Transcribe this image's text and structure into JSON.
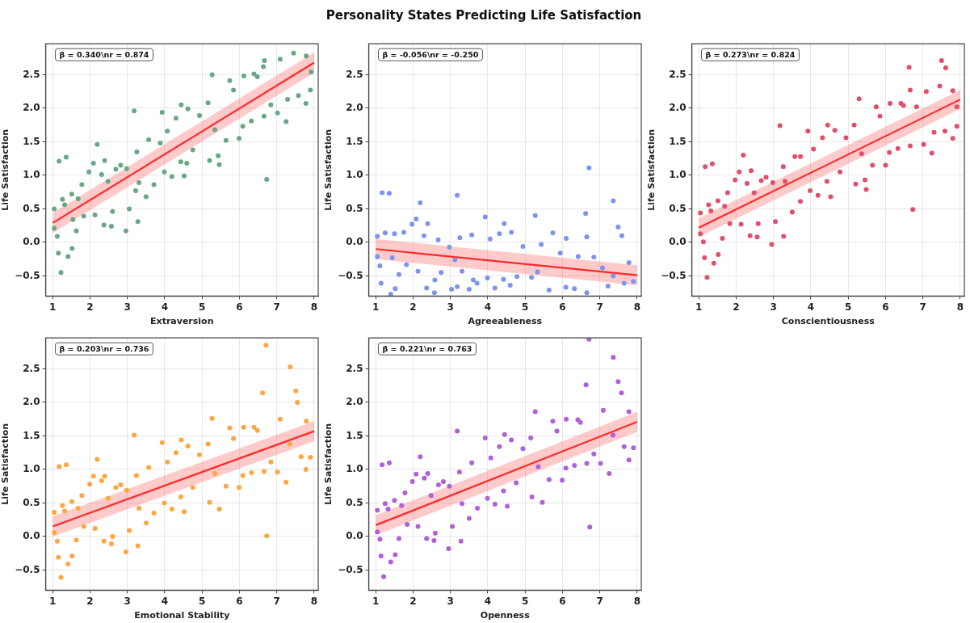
{
  "chart_data": [
    {
      "type": "scatter",
      "xlabel": "Extraversion",
      "ylabel": "Life Satisfaction",
      "xlim": [
        0.81,
        8.11
      ],
      "ylim": [
        -0.8,
        2.96
      ],
      "xticks": [
        1,
        2,
        3,
        4,
        5,
        6,
        7,
        8
      ],
      "yticks": [
        {
          "value": -0.5,
          "label": "−0.5"
        },
        {
          "value": 0,
          "label": "0.0"
        },
        {
          "value": 0.5,
          "label": "0.5"
        },
        {
          "value": 1,
          "label": "1.0"
        },
        {
          "value": 1.5,
          "label": "1.5"
        },
        {
          "value": 2,
          "label": "2.0"
        },
        {
          "value": 2.5,
          "label": "2.5"
        }
      ],
      "grid": true,
      "annotations": [
        "β = 0.340\\nr = 0.874"
      ],
      "series": [
        {
          "marker": "circle",
          "color": "#68a882",
          "x": [
            1.04,
            1.04,
            1.12,
            1.15,
            1.22,
            1.17,
            1.36,
            1.26,
            1.32,
            1.41,
            1.52,
            1.51,
            1.54,
            1.63,
            1.68,
            1.78,
            1.83,
            1.97,
            2.09,
            2.13,
            2.19,
            2.31,
            2.37,
            2.39,
            2.48,
            2.57,
            2.6,
            2.69,
            2.82,
            2.96,
            2.98,
            3.05,
            3.18,
            3.22,
            3.25,
            3.28,
            3.31,
            3.5,
            3.57,
            3.71,
            3.88,
            3.93,
            3.99,
            4.07,
            4.19,
            4.3,
            4.43,
            4.44,
            4.52,
            4.62,
            4.59,
            4.75,
            4.93,
            5.16,
            5.2,
            5.27,
            5.34,
            5.43,
            5.46,
            5.64,
            5.74,
            5.84,
            5.99,
            6.09,
            6.12,
            6.32,
            6.39,
            6.48,
            6.64,
            6.67,
            6.66,
            6.73,
            6.84,
            7.02,
            7.09,
            7.25,
            7.29,
            7.45,
            7.58,
            7.78,
            7.79,
            7.9,
            7.92
          ],
          "values": [
            0.5,
            0.21,
            0.09,
            -0.16,
            -0.45,
            1.21,
            1.27,
            0.64,
            0.56,
            -0.21,
            -0.09,
            0.72,
            0.34,
            0.17,
            0.65,
            0.86,
            0.39,
            1.05,
            1.18,
            0.41,
            1.46,
            1.01,
            0.26,
            1.22,
            0.91,
            0.24,
            0.46,
            1.09,
            1.15,
            0.17,
            1.1,
            0.5,
            1.96,
            0.77,
            1.35,
            0.31,
            0.89,
            0.68,
            1.53,
            0.86,
            1.48,
            1.94,
            1.05,
            1.66,
            0.98,
            1.85,
            1.2,
            2.05,
            0.99,
            1.99,
            1.18,
            1.38,
            1.89,
            2.08,
            1.22,
            2.5,
            1.68,
            1.29,
            1.16,
            1.52,
            2.41,
            2.27,
            1.55,
            1.73,
            2.48,
            1.81,
            2.51,
            2.47,
            2.62,
            2.71,
            1.88,
            0.94,
            2.05,
            1.93,
            2.73,
            1.8,
            2.13,
            2.82,
            2.19,
            2.07,
            2.78,
            2.27,
            2.54
          ]
        },
        {
          "type": "line",
          "color": "#ff2a2a",
          "x": [
            1,
            8
          ],
          "values": [
            0.29,
            2.68
          ],
          "lower": [
            0.14,
            2.53
          ],
          "upper": [
            0.44,
            2.83
          ]
        }
      ]
    },
    {
      "type": "scatter",
      "title": "Personality States Predicting Life Satisfaction",
      "xlabel": "Agreeableness",
      "ylabel": "Life Satisfaction",
      "xlim": [
        0.81,
        8.11
      ],
      "ylim": [
        -0.8,
        2.96
      ],
      "xticks": [
        1,
        2,
        3,
        4,
        5,
        6,
        7,
        8
      ],
      "yticks": [
        {
          "value": -0.5,
          "label": "−0.5"
        },
        {
          "value": 0,
          "label": "0.0"
        },
        {
          "value": 0.5,
          "label": "0.5"
        },
        {
          "value": 1,
          "label": "1.0"
        },
        {
          "value": 1.5,
          "label": "1.5"
        },
        {
          "value": 2,
          "label": "2.0"
        },
        {
          "value": 2.5,
          "label": "2.5"
        }
      ],
      "grid": true,
      "annotations": [
        "β = -0.056\\nr = -0.250"
      ],
      "series": [
        {
          "marker": "circle",
          "color": "#7b95ec",
          "x": [
            1.04,
            1.04,
            1.11,
            1.14,
            1.17,
            1.25,
            1.36,
            1.4,
            1.44,
            1.5,
            1.52,
            1.62,
            1.75,
            1.82,
            1.97,
            2.08,
            2.13,
            2.19,
            2.29,
            2.36,
            2.39,
            2.57,
            2.58,
            2.67,
            2.75,
            2.97,
            3.03,
            3.12,
            3.18,
            3.18,
            3.25,
            3.31,
            3.5,
            3.57,
            3.61,
            3.71,
            3.93,
            3.99,
            4.06,
            4.19,
            4.31,
            4.44,
            4.42,
            4.6,
            4.63,
            4.78,
            4.94,
            5.17,
            5.27,
            5.33,
            5.43,
            5.64,
            5.74,
            5.94,
            6.09,
            6.1,
            6.32,
            6.42,
            6.62,
            6.65,
            6.71,
            6.65,
            6.84,
            7.07,
            7.22,
            7.36,
            7.36,
            7.49,
            7.59,
            7.65,
            7.78,
            7.9
          ],
          "values": [
            0.09,
            -0.21,
            -0.35,
            -0.61,
            0.74,
            0.14,
            0.73,
            -0.77,
            -0.23,
            0.13,
            -0.69,
            -0.48,
            0.15,
            -0.33,
            0.27,
            0.35,
            -0.43,
            0.59,
            0.1,
            -0.68,
            0.28,
            -0.75,
            -0.56,
            0.04,
            -0.45,
            -0.07,
            -0.7,
            -0.26,
            0.7,
            -0.66,
            0.07,
            -0.43,
            -0.7,
            0.11,
            -0.56,
            -0.61,
            0.38,
            -0.53,
            0.05,
            -0.68,
            0.13,
            0.28,
            -0.55,
            -0.64,
            0.15,
            -0.51,
            -0.06,
            -0.52,
            0.4,
            -0.44,
            -0.03,
            -0.71,
            0.14,
            -0.16,
            -0.67,
            0.06,
            -0.69,
            -0.21,
            0.43,
            0.08,
            1.11,
            -0.75,
            -0.22,
            -0.38,
            -0.65,
            0.62,
            -0.5,
            0.23,
            0.1,
            -0.61,
            -0.3,
            -0.58
          ]
        },
        {
          "type": "line",
          "color": "#ff2a2a",
          "x": [
            1,
            8
          ],
          "values": [
            -0.1,
            -0.49
          ],
          "lower": [
            -0.25,
            -0.64
          ],
          "upper": [
            0.05,
            -0.34
          ]
        }
      ]
    },
    {
      "type": "scatter",
      "xlabel": "Conscientiousness",
      "ylabel": "Life Satisfaction",
      "xlim": [
        0.81,
        8.11
      ],
      "ylim": [
        -0.8,
        2.96
      ],
      "xticks": [
        1,
        2,
        3,
        4,
        5,
        6,
        7,
        8
      ],
      "yticks": [
        {
          "value": -0.5,
          "label": "−0.5"
        },
        {
          "value": 0,
          "label": "0.0"
        },
        {
          "value": 0.5,
          "label": "0.5"
        },
        {
          "value": 1,
          "label": "1.0"
        },
        {
          "value": 1.5,
          "label": "1.5"
        },
        {
          "value": 2,
          "label": "2.0"
        },
        {
          "value": 2.5,
          "label": "2.5"
        }
      ],
      "grid": true,
      "annotations": [
        "β = 0.273\\nr = 0.824"
      ],
      "series": [
        {
          "marker": "circle",
          "color": "#e0506a",
          "x": [
            1.04,
            1.04,
            1.12,
            1.15,
            1.22,
            1.17,
            1.36,
            1.26,
            1.32,
            1.4,
            1.52,
            1.51,
            1.63,
            1.69,
            1.77,
            1.83,
            1.97,
            2.08,
            2.13,
            2.19,
            2.29,
            2.37,
            2.4,
            2.48,
            2.56,
            2.59,
            2.67,
            2.8,
            2.95,
            2.98,
            3.05,
            3.17,
            3.26,
            3.27,
            3.31,
            3.5,
            3.57,
            3.72,
            3.72,
            3.92,
            3.98,
            4.07,
            4.19,
            4.31,
            4.45,
            4.43,
            4.53,
            4.64,
            4.78,
            4.94,
            5.16,
            5.2,
            5.29,
            5.36,
            5.45,
            5.48,
            5.65,
            5.75,
            5.85,
            6,
            6.1,
            6.12,
            6.33,
            6.41,
            6.48,
            6.63,
            6.66,
            6.66,
            6.73,
            6.83,
            7.02,
            7.09,
            7.24,
            7.3,
            7.45,
            7.5,
            7.61,
            7.59,
            7.8,
            7.8,
            7.91,
            7.91
          ],
          "values": [
            0.44,
            0.13,
            0.01,
            -0.23,
            -0.52,
            1.13,
            1.17,
            0.56,
            0.47,
            -0.31,
            -0.18,
            0.62,
            0.06,
            0.54,
            0.74,
            0.28,
            0.93,
            1.05,
            0.27,
            1.3,
            0.88,
            0.1,
            1.07,
            0.74,
            0.08,
            0.28,
            0.92,
            0.97,
            -0.03,
            0.89,
            0.31,
            1.74,
            1.13,
            0.09,
            0.91,
            0.45,
            1.28,
            1.28,
            0.61,
            1.66,
            0.77,
            1.39,
            0.7,
            1.56,
            1.75,
            0.91,
            0.68,
            1.67,
            1.05,
            1.56,
            1.75,
            0.87,
            2.14,
            1.32,
            0.93,
            0.79,
            1.15,
            2.02,
            1.88,
            1.15,
            1.34,
            2.07,
            1.4,
            2.07,
            2.04,
            2.61,
            2.27,
            1.44,
            0.49,
            2.02,
            1.46,
            2.25,
            1.33,
            1.64,
            2.33,
            2.71,
            2.6,
            1.66,
            2.26,
            1.55,
            2.02,
            1.73
          ]
        },
        {
          "type": "line",
          "color": "#ff2a2a",
          "x": [
            1,
            8
          ],
          "values": [
            0.22,
            2.13
          ],
          "lower": [
            0.08,
            1.99
          ],
          "upper": [
            0.36,
            2.27
          ]
        }
      ]
    },
    {
      "type": "scatter",
      "xlabel": "Emotional Stability",
      "ylabel": "Life Satisfaction",
      "xlim": [
        0.81,
        8.11
      ],
      "ylim": [
        -0.8,
        2.96
      ],
      "xticks": [
        1,
        2,
        3,
        4,
        5,
        6,
        7,
        8
      ],
      "yticks": [
        {
          "value": -0.5,
          "label": "−0.5"
        },
        {
          "value": 0,
          "label": "0.0"
        },
        {
          "value": 0.5,
          "label": "0.5"
        },
        {
          "value": 1,
          "label": "1.0"
        },
        {
          "value": 1.5,
          "label": "1.5"
        },
        {
          "value": 2,
          "label": "2.0"
        },
        {
          "value": 2.5,
          "label": "2.5"
        }
      ],
      "grid": true,
      "annotations": [
        "β = 0.203\\nr = 0.736"
      ],
      "series": [
        {
          "marker": "circle",
          "color": "#ffa640",
          "x": [
            1.04,
            1.04,
            1.12,
            1.15,
            1.22,
            1.17,
            1.36,
            1.26,
            1.32,
            1.41,
            1.52,
            1.51,
            1.63,
            1.68,
            1.78,
            1.83,
            1.99,
            2.09,
            2.13,
            2.19,
            2.31,
            2.37,
            2.39,
            2.48,
            2.57,
            2.6,
            2.69,
            2.82,
            2.96,
            2.98,
            3.05,
            3.18,
            3.24,
            3.28,
            3.31,
            3.5,
            3.57,
            3.71,
            3.93,
            3.99,
            4.07,
            4.19,
            4.3,
            4.44,
            4.43,
            4.52,
            4.62,
            4.75,
            4.93,
            5.16,
            5.2,
            5.27,
            5.34,
            5.46,
            5.64,
            5.74,
            5.84,
            5.99,
            6.09,
            6.11,
            6.32,
            6.39,
            6.48,
            6.62,
            6.71,
            6.66,
            6.73,
            6.84,
            7.02,
            7.09,
            7.25,
            7.35,
            7.36,
            7.51,
            7.55,
            7.65,
            7.78,
            7.79,
            7.9
          ],
          "values": [
            0.36,
            0.06,
            -0.07,
            -0.31,
            -0.61,
            1.04,
            1.07,
            0.46,
            0.38,
            -0.41,
            -0.29,
            0.52,
            -0.05,
            0.42,
            0.61,
            0.15,
            0.78,
            0.9,
            0.12,
            1.15,
            0.83,
            -0.07,
            0.9,
            0.57,
            -0.11,
            0,
            0.73,
            0.77,
            -0.23,
            0.69,
            0.09,
            1.51,
            0.91,
            -0.14,
            0.42,
            0.2,
            1.03,
            0.35,
            1.4,
            0.5,
            1.11,
            0.41,
            1.25,
            1.44,
            0.59,
            0.37,
            1.35,
            0.73,
            1.22,
            1.38,
            0.51,
            1.76,
            0.94,
            0.41,
            0.75,
            1.62,
            1.46,
            0.73,
            0.91,
            1.63,
            0.95,
            1.63,
            1.58,
            2.14,
            2.85,
            0.97,
            0.01,
            1.11,
            0.96,
            1.75,
            0.81,
            1.38,
            2.53,
            2.17,
            2,
            1.19,
            1,
            1.72,
            1.18
          ]
        },
        {
          "type": "line",
          "color": "#ff2a2a",
          "x": [
            1,
            8
          ],
          "values": [
            0.15,
            1.57
          ],
          "lower": [
            0,
            1.42
          ],
          "upper": [
            0.3,
            1.72
          ]
        }
      ]
    },
    {
      "type": "scatter",
      "xlabel": "Openness",
      "ylabel": "Life Satisfaction",
      "xlim": [
        0.81,
        8.11
      ],
      "ylim": [
        -0.8,
        2.96
      ],
      "xticks": [
        1,
        2,
        3,
        4,
        5,
        6,
        7,
        8
      ],
      "yticks": [
        {
          "value": -0.5,
          "label": "−0.5"
        },
        {
          "value": 0,
          "label": "0.0"
        },
        {
          "value": 0.5,
          "label": "0.5"
        },
        {
          "value": 1,
          "label": "1.0"
        },
        {
          "value": 1.5,
          "label": "1.5"
        },
        {
          "value": 2,
          "label": "2.0"
        },
        {
          "value": 2.5,
          "label": "2.5"
        }
      ],
      "grid": true,
      "annotations": [
        "β = 0.221\\nr = 0.763"
      ],
      "series": [
        {
          "marker": "circle",
          "color": "#b060d8",
          "x": [
            1.04,
            1.04,
            1.11,
            1.14,
            1.21,
            1.17,
            1.36,
            1.25,
            1.33,
            1.4,
            1.52,
            1.5,
            1.62,
            1.69,
            1.78,
            1.84,
            1.98,
            2.08,
            2.13,
            2.19,
            2.3,
            2.36,
            2.39,
            2.48,
            2.56,
            2.59,
            2.68,
            2.81,
            2.95,
            2.97,
            3.05,
            3.18,
            3.24,
            3.28,
            3.31,
            3.5,
            3.57,
            3.72,
            3.93,
            3.99,
            4.08,
            4.19,
            4.31,
            4.45,
            4.42,
            4.52,
            4.63,
            4.76,
            4.94,
            5.15,
            5.18,
            5.27,
            5.35,
            5.46,
            5.64,
            5.74,
            5.85,
            5.99,
            6.09,
            6.1,
            6.32,
            6.41,
            6.48,
            6.63,
            6.71,
            6.65,
            6.73,
            6.84,
            7.02,
            7.09,
            7.25,
            7.35,
            7.36,
            7.49,
            7.58,
            7.65,
            7.78,
            7.78,
            7.9
          ],
          "values": [
            0.39,
            0.07,
            -0.04,
            -0.29,
            -0.6,
            1.07,
            1.1,
            0.49,
            0.41,
            -0.38,
            -0.27,
            0.54,
            -0.03,
            0.46,
            0.65,
            0.18,
            0.82,
            0.93,
            0.15,
            1.19,
            0.87,
            -0.03,
            0.94,
            0.61,
            -0.06,
            0.05,
            0.77,
            0.82,
            -0.18,
            0.75,
            0.15,
            1.57,
            0.96,
            -0.07,
            0.49,
            0.27,
            1.1,
            0.42,
            1.47,
            0.57,
            1.17,
            0.48,
            1.34,
            1.52,
            0.68,
            0.45,
            1.44,
            0.8,
            1.31,
            1.47,
            0.59,
            1.86,
            1.04,
            0.51,
            0.85,
            1.72,
            1.57,
            0.84,
            1.02,
            1.75,
            1.06,
            1.74,
            1.7,
            2.26,
            2.94,
            1.09,
            0.14,
            1.23,
            1.09,
            1.88,
            0.94,
            1.51,
            2.67,
            2.31,
            2.14,
            1.34,
            1.14,
            1.86,
            1.32
          ]
        },
        {
          "type": "line",
          "color": "#ff2a2a",
          "x": [
            1,
            8
          ],
          "values": [
            0.17,
            1.71
          ],
          "lower": [
            0.02,
            1.56
          ],
          "upper": [
            0.32,
            1.86
          ]
        }
      ]
    }
  ]
}
